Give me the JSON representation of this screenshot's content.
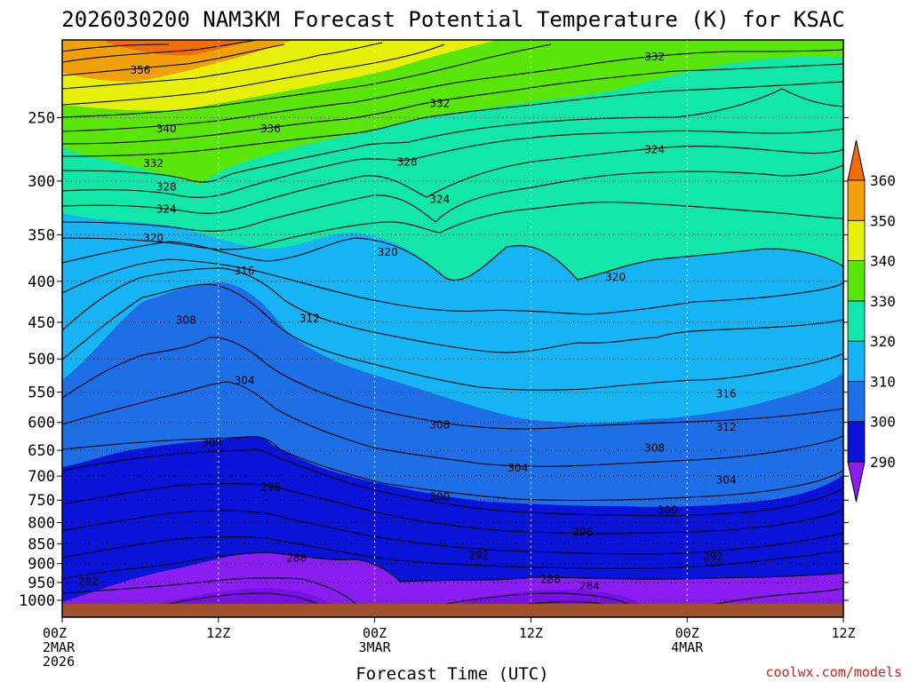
{
  "chart_data": {
    "type": "contour",
    "title": "2026030200 NAM3KM Forecast Potential Temperature (K) for KSAC",
    "xlabel": "Forecast Time (UTC)",
    "ylabel": "",
    "credit": "coolwx.com/models",
    "y_axis": {
      "scale": "log-pressure",
      "range_hPa": [
        1000,
        200
      ],
      "ticks": [
        "250",
        "300",
        "350",
        "400",
        "450",
        "500",
        "550",
        "600",
        "650",
        "700",
        "750",
        "800",
        "850",
        "900",
        "950",
        "1000"
      ],
      "tick_values": [
        250,
        300,
        350,
        400,
        450,
        500,
        550,
        600,
        650,
        700,
        750,
        800,
        850,
        900,
        950,
        1000
      ]
    },
    "x_axis": {
      "range_hours": [
        0,
        60
      ],
      "ticks": [
        {
          "hour": 0,
          "line1": "00Z",
          "line2": "2MAR",
          "line3": "2026"
        },
        {
          "hour": 12,
          "line1": "12Z",
          "line2": "",
          "line3": ""
        },
        {
          "hour": 24,
          "line1": "00Z",
          "line2": "3MAR",
          "line3": ""
        },
        {
          "hour": 36,
          "line1": "12Z",
          "line2": "",
          "line3": ""
        },
        {
          "hour": 48,
          "line1": "00Z",
          "line2": "4MAR",
          "line3": ""
        },
        {
          "hour": 60,
          "line1": "12Z",
          "line2": "",
          "line3": ""
        }
      ]
    },
    "colorbar": {
      "levels": [
        "290",
        "300",
        "310",
        "320",
        "330",
        "340",
        "350",
        "360"
      ],
      "colors": [
        "#8a1ef0",
        "#0a14d8",
        "#1e6ee6",
        "#16b4f4",
        "#12e6a8",
        "#5ae60a",
        "#e6f00a",
        "#f0a00a",
        "#f06e0a"
      ]
    },
    "contour_labels": [
      {
        "text": "356",
        "hour": 6.0,
        "p": 218
      },
      {
        "text": "340",
        "hour": 8.0,
        "p": 258
      },
      {
        "text": "336",
        "hour": 16.0,
        "p": 258
      },
      {
        "text": "332",
        "hour": 7.0,
        "p": 285
      },
      {
        "text": "328",
        "hour": 8.0,
        "p": 305
      },
      {
        "text": "324",
        "hour": 8.0,
        "p": 325
      },
      {
        "text": "320",
        "hour": 7.0,
        "p": 353
      },
      {
        "text": "316",
        "hour": 14.0,
        "p": 388
      },
      {
        "text": "308",
        "hour": 9.5,
        "p": 447
      },
      {
        "text": "312",
        "hour": 19.0,
        "p": 445
      },
      {
        "text": "304",
        "hour": 14.0,
        "p": 532
      },
      {
        "text": "300",
        "hour": 11.5,
        "p": 636
      },
      {
        "text": "296",
        "hour": 16.0,
        "p": 722
      },
      {
        "text": "288",
        "hour": 18.0,
        "p": 886
      },
      {
        "text": "292",
        "hour": 2.0,
        "p": 948
      },
      {
        "text": "332",
        "hour": 29.0,
        "p": 240
      },
      {
        "text": "328",
        "hour": 26.5,
        "p": 284
      },
      {
        "text": "324",
        "hour": 29.0,
        "p": 316
      },
      {
        "text": "320",
        "hour": 25.0,
        "p": 368
      },
      {
        "text": "308",
        "hour": 29.0,
        "p": 604
      },
      {
        "text": "304",
        "hour": 35.0,
        "p": 684
      },
      {
        "text": "300",
        "hour": 29.0,
        "p": 743
      },
      {
        "text": "296",
        "hour": 40.0,
        "p": 822
      },
      {
        "text": "292",
        "hour": 32.0,
        "p": 879
      },
      {
        "text": "288",
        "hour": 37.5,
        "p": 942
      },
      {
        "text": "284",
        "hour": 40.5,
        "p": 960
      },
      {
        "text": "332",
        "hour": 45.5,
        "p": 210
      },
      {
        "text": "324",
        "hour": 45.5,
        "p": 274
      },
      {
        "text": "320",
        "hour": 42.5,
        "p": 395
      },
      {
        "text": "316",
        "hour": 51.0,
        "p": 553
      },
      {
        "text": "312",
        "hour": 51.0,
        "p": 608
      },
      {
        "text": "308",
        "hour": 45.5,
        "p": 646
      },
      {
        "text": "304",
        "hour": 51.0,
        "p": 708
      },
      {
        "text": "300",
        "hour": 46.5,
        "p": 772
      },
      {
        "text": "292",
        "hour": 50.0,
        "p": 882
      }
    ]
  }
}
